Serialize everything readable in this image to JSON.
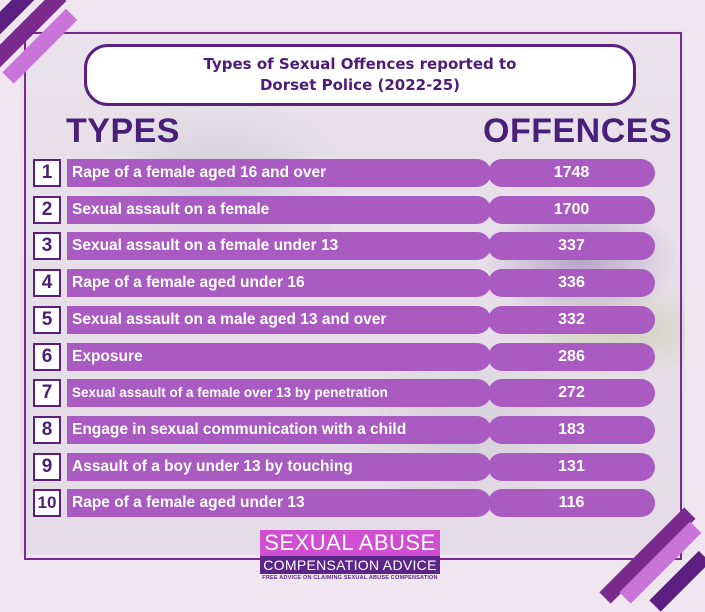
{
  "title": {
    "line1": "Types of Sexual Offences reported to",
    "line2": "Dorset Police (2022-25)"
  },
  "headers": {
    "types": "TYPES",
    "offences": "OFFENCES"
  },
  "rows": [
    {
      "rank": "1",
      "type": "Rape of a female aged 16 and over",
      "offences": "1748"
    },
    {
      "rank": "2",
      "type": "Sexual assault on a female",
      "offences": "1700"
    },
    {
      "rank": "3",
      "type": "Sexual assault on a female under 13",
      "offences": "337"
    },
    {
      "rank": "4",
      "type": "Rape of a female aged under 16",
      "offences": "336"
    },
    {
      "rank": "5",
      "type": "Sexual assault on a male aged 13 and over",
      "offences": "332"
    },
    {
      "rank": "6",
      "type": "Exposure",
      "offences": "286"
    },
    {
      "rank": "7",
      "type": "Sexual assault of a female over 13 by penetration",
      "offences": "272"
    },
    {
      "rank": "8",
      "type": "Engage in sexual communication with a child",
      "offences": "183"
    },
    {
      "rank": "9",
      "type": "Assault of a boy under 13 by touching",
      "offences": "131"
    },
    {
      "rank": "10",
      "type": "Rape of a female aged under 13",
      "offences": "116"
    }
  ],
  "logo": {
    "line1": "SEXUAL ABUSE",
    "line2": "COMPENSATION ADVICE",
    "tagline": "FREE ADVICE ON CLAIMING SEXUAL ABUSE COMPENSATION"
  },
  "colors": {
    "accent": "#a95bc2",
    "dark": "#4a1f7a",
    "logo_pink": "#cf4fd0",
    "logo_purple": "#5b2688"
  }
}
